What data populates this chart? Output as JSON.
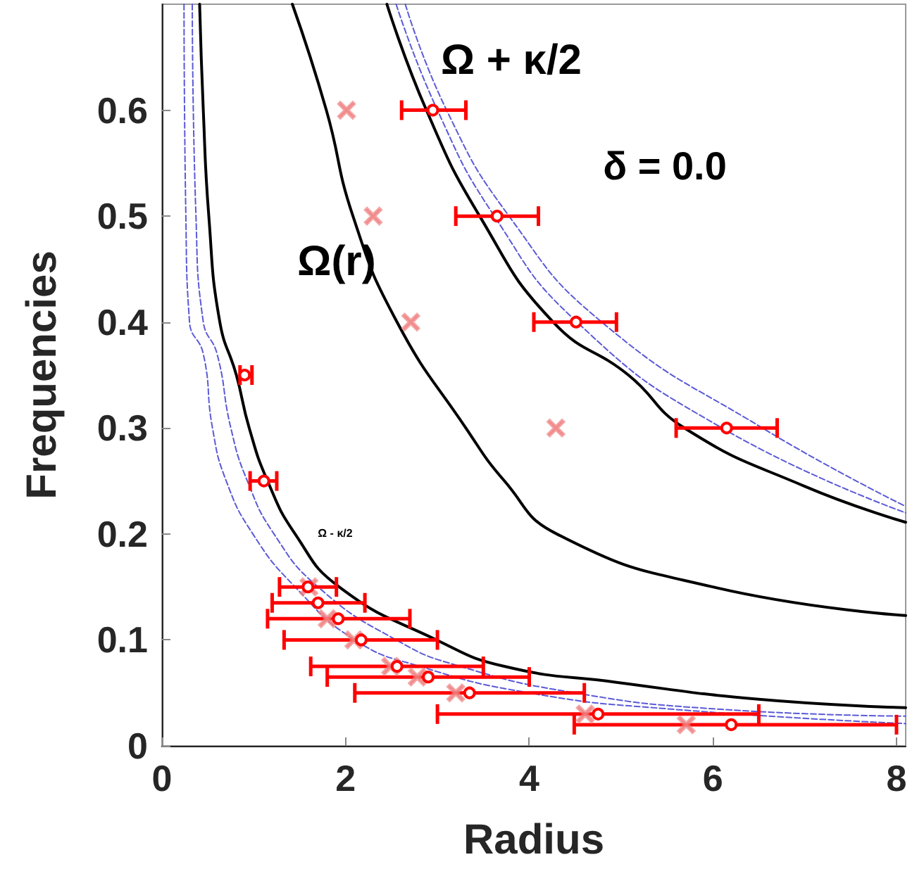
{
  "chart_data": {
    "type": "line",
    "xlabel": "Radius",
    "ylabel": "Frequencies",
    "xlim": [
      0,
      8.1
    ],
    "ylim": [
      0,
      0.7
    ],
    "xticks": [
      0,
      2,
      4,
      6,
      8
    ],
    "yticks": [
      0,
      0.1,
      0.2,
      0.3,
      0.4,
      0.5,
      0.6
    ],
    "grid": false,
    "annotations": [
      "Ω + κ/2",
      "Ω(r)",
      "Ω - κ/2",
      "δ = 0.0"
    ],
    "series": [
      {
        "color": "#5a5ad8",
        "line_style": "dashed",
        "x": [
          0.24,
          0.26,
          0.3,
          0.45,
          0.55,
          0.7,
          0.99,
          1.45,
          2.1,
          2.81,
          4.0,
          5.5,
          8.1
        ],
        "values": [
          0.7,
          0.5,
          0.4,
          0.37,
          0.3,
          0.25,
          0.2,
          0.15,
          0.1,
          0.075,
          0.05,
          0.035,
          0.021
        ]
      },
      {
        "color": "#5a5ad8",
        "line_style": "dashed",
        "x": [
          0.33,
          0.37,
          0.45,
          0.6,
          0.75,
          0.93,
          1.22,
          1.7,
          2.55,
          3.25,
          4.5,
          6.0,
          8.1
        ],
        "values": [
          0.7,
          0.5,
          0.4,
          0.37,
          0.3,
          0.25,
          0.2,
          0.15,
          0.1,
          0.075,
          0.05,
          0.035,
          0.028
        ]
      },
      {
        "color": "#5a5ad8",
        "line_style": "dashed",
        "x": [
          2.65,
          3.1,
          3.78,
          4.79,
          6.54,
          8.1
        ],
        "values": [
          0.7,
          0.6,
          0.5,
          0.4,
          0.3,
          0.226
        ]
      },
      {
        "color": "#5a5ad8",
        "line_style": "dashed",
        "x": [
          2.55,
          3.0,
          3.62,
          4.52,
          6.1,
          8.1
        ],
        "values": [
          0.7,
          0.6,
          0.5,
          0.4,
          0.3,
          0.22
        ]
      },
      {
        "color": "#000000",
        "line_style": "solid",
        "x": [
          0.41,
          0.45,
          0.51,
          0.63,
          0.81,
          0.95,
          1.15,
          1.45,
          1.93,
          2.99,
          3.73,
          4.95,
          6.5,
          8.1
        ],
        "values": [
          0.7,
          0.6,
          0.5,
          0.4,
          0.35,
          0.3,
          0.25,
          0.2,
          0.15,
          0.1,
          0.075,
          0.06,
          0.044,
          0.036
        ]
      },
      {
        "color": "#000000",
        "line_style": "solid",
        "x": [
          1.42,
          1.79,
          2.08,
          2.56,
          3.31,
          3.73,
          4.3,
          6.0,
          8.1
        ],
        "values": [
          0.7,
          0.6,
          0.5,
          0.4,
          0.3,
          0.25,
          0.2,
          0.15,
          0.123
        ]
      },
      {
        "color": "#000000",
        "line_style": "solid",
        "x": [
          2.45,
          2.88,
          3.46,
          4.26,
          5.08,
          5.69,
          7.0,
          8.1
        ],
        "values": [
          0.7,
          0.6,
          0.5,
          0.4,
          0.35,
          0.3,
          0.245,
          0.211
        ]
      },
      {
        "type": "scatter",
        "color": "#f08080",
        "marker": "cross",
        "x": [
          2.01,
          2.3,
          2.71,
          4.29,
          1.6,
          1.8,
          2.09,
          2.49,
          2.78,
          3.2,
          4.61,
          5.71
        ],
        "values": [
          0.6,
          0.5,
          0.4,
          0.3,
          0.15,
          0.12,
          0.1,
          0.075,
          0.065,
          0.05,
          0.03,
          0.02
        ]
      },
      {
        "type": "scatter",
        "color": "#ff0000",
        "marker": "circle",
        "x": [
          2.95,
          3.65,
          4.51,
          0.9,
          6.15,
          1.11,
          1.59,
          1.7,
          1.92,
          2.17,
          2.56,
          2.9,
          3.35,
          4.75,
          6.2
        ],
        "values": [
          0.6,
          0.5,
          0.4,
          0.35,
          0.3,
          0.25,
          0.15,
          0.135,
          0.12,
          0.1,
          0.075,
          0.065,
          0.05,
          0.03,
          0.02
        ],
        "xerrors": [
          [
            2.61,
            3.31
          ],
          [
            3.2,
            4.1
          ],
          [
            4.05,
            4.95
          ],
          [
            0.85,
            0.98
          ],
          [
            5.6,
            6.7
          ],
          [
            0.96,
            1.25
          ],
          [
            1.28,
            1.9
          ],
          [
            1.2,
            2.21
          ],
          [
            1.15,
            2.7
          ],
          [
            1.33,
            3.0
          ],
          [
            1.62,
            3.5
          ],
          [
            1.8,
            4.0
          ],
          [
            2.1,
            4.6
          ],
          [
            3.0,
            6.5
          ],
          [
            4.49,
            8.0
          ]
        ]
      }
    ]
  }
}
